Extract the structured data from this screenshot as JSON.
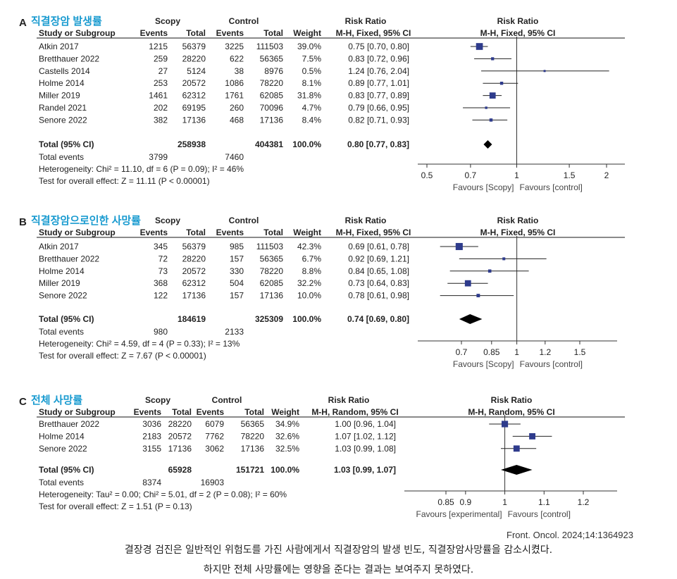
{
  "panels": [
    {
      "letter": "A",
      "title": "직결장암 발생률",
      "headers": {
        "group1": "Scopy",
        "group2": "Control",
        "rr": "Risk Ratio",
        "plot": "Risk Ratio",
        "study": "Study or Subgroup",
        "events": "Events",
        "total": "Total",
        "weight": "Weight",
        "method": "M-H, Fixed, 95% CI"
      },
      "studies": [
        {
          "name": "Atkin 2017",
          "e1": "1215",
          "t1": "56379",
          "e2": "3225",
          "t2": "111503",
          "weight": "39.0%",
          "ci_text": "0.75 [0.70, 0.80]",
          "rr": 0.75,
          "lo": 0.7,
          "hi": 0.8,
          "w": 39.0
        },
        {
          "name": "Bretthauer 2022",
          "e1": "259",
          "t1": "28220",
          "e2": "622",
          "t2": "56365",
          "weight": "7.5%",
          "ci_text": "0.83 [0.72, 0.96]",
          "rr": 0.83,
          "lo": 0.72,
          "hi": 0.96,
          "w": 7.5
        },
        {
          "name": "Castells 2014",
          "e1": "27",
          "t1": "5124",
          "e2": "38",
          "t2": "8976",
          "weight": "0.5%",
          "ci_text": "1.24 [0.76, 2.04]",
          "rr": 1.24,
          "lo": 0.76,
          "hi": 2.04,
          "w": 0.5
        },
        {
          "name": "Holme 2014",
          "e1": "253",
          "t1": "20572",
          "e2": "1086",
          "t2": "78220",
          "weight": "8.1%",
          "ci_text": "0.89 [0.77, 1.01]",
          "rr": 0.89,
          "lo": 0.77,
          "hi": 1.01,
          "w": 8.1
        },
        {
          "name": "Miller 2019",
          "e1": "1461",
          "t1": "62312",
          "e2": "1761",
          "t2": "62085",
          "weight": "31.8%",
          "ci_text": "0.83 [0.77, 0.89]",
          "rr": 0.83,
          "lo": 0.77,
          "hi": 0.89,
          "w": 31.8
        },
        {
          "name": "Randel 2021",
          "e1": "202",
          "t1": "69195",
          "e2": "260",
          "t2": "70096",
          "weight": "4.7%",
          "ci_text": "0.79 [0.66, 0.95]",
          "rr": 0.79,
          "lo": 0.66,
          "hi": 0.95,
          "w": 4.7
        },
        {
          "name": "Senore 2022",
          "e1": "382",
          "t1": "17136",
          "e2": "468",
          "t2": "17136",
          "weight": "8.4%",
          "ci_text": "0.82 [0.71, 0.93]",
          "rr": 0.82,
          "lo": 0.71,
          "hi": 0.93,
          "w": 8.4
        }
      ],
      "total": {
        "label": "Total (95% CI)",
        "t1": "258938",
        "t2": "404381",
        "weight": "100.0%",
        "ci_text": "0.80 [0.77, 0.83]",
        "rr": 0.8,
        "lo": 0.77,
        "hi": 0.83,
        "shape": "small-diamond"
      },
      "total_events": {
        "label": "Total events",
        "e1": "3799",
        "e2": "7460"
      },
      "heterogeneity": "Heterogeneity: Chi² = 11.10, df = 6 (P = 0.09); I² = 46%",
      "overall": "Test for overall effect: Z = 11.11 (P < 0.00001)",
      "axis": {
        "ticks": [
          0.5,
          0.7,
          1,
          1.5,
          2
        ],
        "tick_labels": [
          "0.5",
          "0.7",
          "1",
          "1.5",
          "2"
        ],
        "min": 0.5,
        "max": 2,
        "scale": "log"
      },
      "favours_left": "Favours [Scopy]",
      "favours_right": "Favours [control]"
    },
    {
      "letter": "B",
      "title": "직결장암으로인한 사망률",
      "headers": {
        "group1": "Scopy",
        "group2": "Control",
        "rr": "Risk Ratio",
        "plot": "Risk Ratio",
        "study": "Study or Subgroup",
        "events": "Events",
        "total": "Total",
        "weight": "Weight",
        "method": "M-H, Fixed, 95% CI"
      },
      "studies": [
        {
          "name": "Atkin 2017",
          "e1": "345",
          "t1": "56379",
          "e2": "985",
          "t2": "111503",
          "weight": "42.3%",
          "ci_text": "0.69 [0.61, 0.78]",
          "rr": 0.69,
          "lo": 0.61,
          "hi": 0.78,
          "w": 42.3
        },
        {
          "name": "Bretthauer 2022",
          "e1": "72",
          "t1": "28220",
          "e2": "157",
          "t2": "56365",
          "weight": "6.7%",
          "ci_text": "0.92 [0.69, 1.21]",
          "rr": 0.92,
          "lo": 0.69,
          "hi": 1.21,
          "w": 6.7
        },
        {
          "name": "Holme 2014",
          "e1": "73",
          "t1": "20572",
          "e2": "330",
          "t2": "78220",
          "weight": "8.8%",
          "ci_text": "0.84 [0.65, 1.08]",
          "rr": 0.84,
          "lo": 0.65,
          "hi": 1.08,
          "w": 8.8
        },
        {
          "name": "Miller 2019",
          "e1": "368",
          "t1": "62312",
          "e2": "504",
          "t2": "62085",
          "weight": "32.2%",
          "ci_text": "0.73 [0.64, 0.83]",
          "rr": 0.73,
          "lo": 0.64,
          "hi": 0.83,
          "w": 32.2
        },
        {
          "name": "Senore 2022",
          "e1": "122",
          "t1": "17136",
          "e2": "157",
          "t2": "17136",
          "weight": "10.0%",
          "ci_text": "0.78 [0.61, 0.98]",
          "rr": 0.78,
          "lo": 0.61,
          "hi": 0.98,
          "w": 10.0
        }
      ],
      "total": {
        "label": "Total (95% CI)",
        "t1": "184619",
        "t2": "325309",
        "weight": "100.0%",
        "ci_text": "0.74 [0.69, 0.80]",
        "rr": 0.74,
        "lo": 0.69,
        "hi": 0.8,
        "shape": "diamond"
      },
      "total_events": {
        "label": "Total events",
        "e1": "980",
        "e2": "2133"
      },
      "heterogeneity": "Heterogeneity: Chi² = 4.59, df = 4 (P = 0.33); I² = 13%",
      "overall": "Test for overall effect: Z = 7.67 (P < 0.00001)",
      "axis": {
        "ticks": [
          0.7,
          0.85,
          1,
          1.2,
          1.5
        ],
        "tick_labels": [
          "0.7",
          "0.85",
          "1",
          "1.2",
          "1.5"
        ],
        "min": 0.55,
        "max": 1.8,
        "scale": "log"
      },
      "favours_left": "Favours [Scopy]",
      "favours_right": "Favours [control]"
    },
    {
      "letter": "C",
      "title": "전체 사망률",
      "headers": {
        "group1": "Scopy",
        "group2": "Control",
        "rr": "Risk Ratio",
        "plot": "Risk Ratio",
        "study": "Study or Subgroup",
        "events": "Events",
        "total": "Total",
        "weight": "Weight",
        "method": "M-H, Random, 95% CI"
      },
      "studies": [
        {
          "name": "Bretthauer 2022",
          "e1": "3036",
          "t1": "28220",
          "e2": "6079",
          "t2": "56365",
          "weight": "34.9%",
          "ci_text": "1.00 [0.96, 1.04]",
          "rr": 1.0,
          "lo": 0.96,
          "hi": 1.04,
          "w": 34.9
        },
        {
          "name": "Holme 2014",
          "e1": "2183",
          "t1": "20572",
          "e2": "7762",
          "t2": "78220",
          "weight": "32.6%",
          "ci_text": "1.07 [1.02, 1.12]",
          "rr": 1.07,
          "lo": 1.02,
          "hi": 1.12,
          "w": 32.6
        },
        {
          "name": "Senore 2022",
          "e1": "3155",
          "t1": "17136",
          "e2": "3062",
          "t2": "17136",
          "weight": "32.5%",
          "ci_text": "1.03 [0.99, 1.08]",
          "rr": 1.03,
          "lo": 0.99,
          "hi": 1.08,
          "w": 32.5
        }
      ],
      "total": {
        "label": "Total (95% CI)",
        "t1": "65928",
        "t2": "151721",
        "weight": "100.0%",
        "ci_text": "1.03 [0.99, 1.07]",
        "rr": 1.03,
        "lo": 0.99,
        "hi": 1.07,
        "shape": "diamond"
      },
      "total_events": {
        "label": "Total events",
        "e1": "8374",
        "e2": "16903"
      },
      "heterogeneity": "Heterogeneity: Tau² = 0.00; Chi² = 5.01, df = 2 (P = 0.08); I² = 60%",
      "overall": "Test for overall effect: Z = 1.51 (P = 0.13)",
      "axis": {
        "ticks": [
          0.85,
          0.9,
          1,
          1.1,
          1.2
        ],
        "tick_labels": [
          "0.85",
          "0.9",
          "1",
          "1.1",
          "1.2"
        ],
        "min": 0.74,
        "max": 1.3,
        "scale": "linear"
      },
      "favours_left": "Favours [experimental]",
      "favours_right": "Favours [control]"
    }
  ],
  "source": "Front. Oncol. 2024;14:1364923",
  "caption_line1": "결장경 검진은 일반적인 위험도를 가진 사람에게서 직결장암의 발생 빈도, 직결장암사망률을 감소시켰다.",
  "caption_line2": "하지만 전체 사망률에는 영향을 준다는 결과는 보여주지 못하였다.",
  "colors": {
    "title": "#1a9bd0",
    "marker": "#2e3b8c",
    "line": "#222222",
    "diamond": "#000000"
  },
  "chart_data": [
    {
      "type": "forest",
      "title": "직결장암 발생률",
      "x": "Risk Ratio",
      "scale": "log",
      "xlim": [
        0.5,
        2
      ],
      "series": [
        {
          "name": "Risk Ratio",
          "values": [
            0.75,
            0.83,
            1.24,
            0.89,
            0.83,
            0.79,
            0.82
          ]
        }
      ],
      "categories": [
        "Atkin 2017",
        "Bretthauer 2022",
        "Castells 2014",
        "Holme 2014",
        "Miller 2019",
        "Randel 2021",
        "Senore 2022"
      ],
      "pooled": {
        "rr": 0.8,
        "lo": 0.77,
        "hi": 0.83
      }
    },
    {
      "type": "forest",
      "title": "직결장암으로인한 사망률",
      "x": "Risk Ratio",
      "scale": "log",
      "xlim": [
        0.55,
        1.8
      ],
      "series": [
        {
          "name": "Risk Ratio",
          "values": [
            0.69,
            0.92,
            0.84,
            0.73,
            0.78
          ]
        }
      ],
      "categories": [
        "Atkin 2017",
        "Bretthauer 2022",
        "Holme 2014",
        "Miller 2019",
        "Senore 2022"
      ],
      "pooled": {
        "rr": 0.74,
        "lo": 0.69,
        "hi": 0.8
      }
    },
    {
      "type": "forest",
      "title": "전체 사망률",
      "x": "Risk Ratio",
      "scale": "linear",
      "xlim": [
        0.74,
        1.3
      ],
      "series": [
        {
          "name": "Risk Ratio",
          "values": [
            1.0,
            1.07,
            1.03
          ]
        }
      ],
      "categories": [
        "Bretthauer 2022",
        "Holme 2014",
        "Senore 2022"
      ],
      "pooled": {
        "rr": 1.03,
        "lo": 0.99,
        "hi": 1.07
      }
    }
  ]
}
